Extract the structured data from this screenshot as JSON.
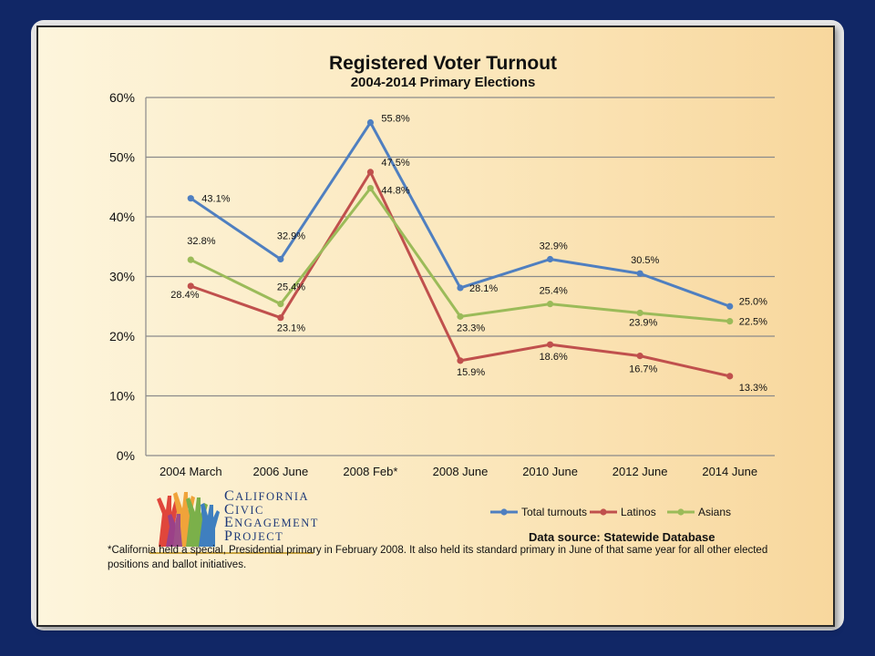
{
  "chart_data": {
    "type": "line",
    "title": "Registered Voter Turnout",
    "subtitle": "2004-2014 Primary Elections",
    "categories": [
      "2004 March",
      "2006 June",
      "2008 Feb*",
      "2008 June",
      "2010 June",
      "2012 June",
      "2014 June"
    ],
    "y_ticks": [
      "0%",
      "10%",
      "20%",
      "30%",
      "40%",
      "50%",
      "60%"
    ],
    "ylim": [
      0,
      60
    ],
    "grid": true,
    "legend_position": "bottom-right",
    "series": [
      {
        "name": "Total turnouts",
        "color": "#4f7fc0",
        "values": [
          43.1,
          32.9,
          55.8,
          28.1,
          32.9,
          30.5,
          25.0
        ],
        "labels": [
          "43.1%",
          "32.9%",
          "55.8%",
          "28.1%",
          "32.9%",
          "30.5%",
          "25.0%"
        ]
      },
      {
        "name": "Latinos",
        "color": "#c0504d",
        "values": [
          28.4,
          23.1,
          47.5,
          15.9,
          18.6,
          16.7,
          13.3
        ],
        "labels": [
          "28.4%",
          "23.1%",
          "47.5%",
          "15.9%",
          "18.6%",
          "16.7%",
          "13.3%"
        ]
      },
      {
        "name": "Asians",
        "color": "#9bbb59",
        "values": [
          32.8,
          25.4,
          44.8,
          23.3,
          25.4,
          23.9,
          22.5
        ],
        "labels": [
          "32.8%",
          "25.4%",
          "44.8%",
          "23.3%",
          "25.4%",
          "23.9%",
          "22.5%"
        ]
      }
    ],
    "source_note": "Data source: Statewide Database"
  },
  "logo": {
    "lines": [
      {
        "cap": "C",
        "rest": "ALIFORNIA"
      },
      {
        "cap": "C",
        "rest": "IVIC"
      },
      {
        "cap": "E",
        "rest": "NGAGEMENT"
      },
      {
        "cap": "P",
        "rest": "ROJECT"
      }
    ]
  },
  "footnote": "*California held a special, Presidential primary in February 2008. It also held its standard primary in June of that same year for all other elected positions and ballot initiatives."
}
